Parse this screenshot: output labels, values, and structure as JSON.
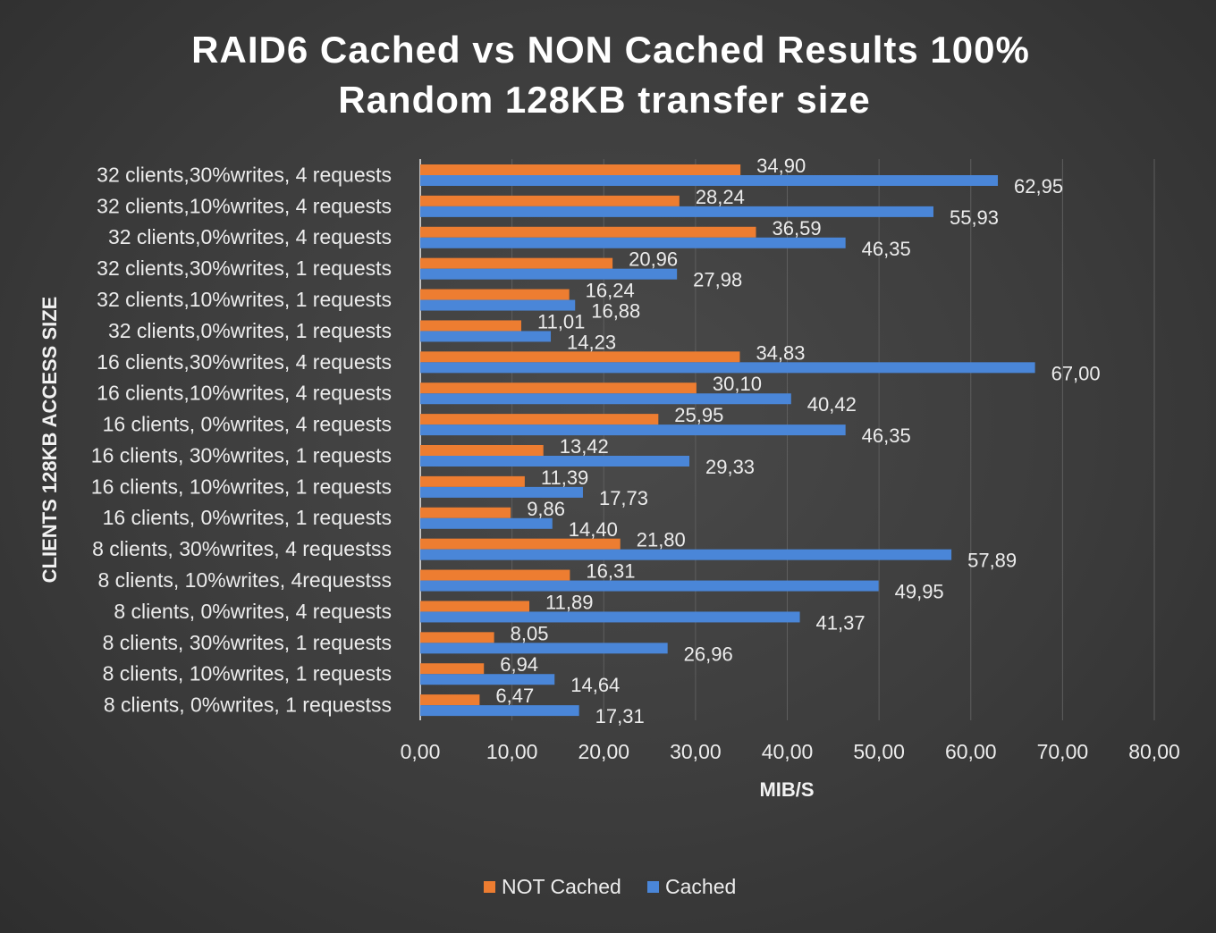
{
  "chart_data": {
    "type": "bar",
    "orientation": "horizontal",
    "title_lines": [
      "RAID6 Cached vs NON Cached Results 100%",
      "Random 128KB transfer size"
    ],
    "xlabel": "MIB/S",
    "ylabel": "CLIENTS 128KB ACCESS SIZE",
    "xlim": [
      0,
      80
    ],
    "xticks": [
      "0,00",
      "10,00",
      "20,00",
      "30,00",
      "40,00",
      "50,00",
      "60,00",
      "70,00",
      "80,00"
    ],
    "grid": true,
    "legend_position": "bottom",
    "categories": [
      "32 clients,30%writes, 4 requests",
      "32 clients,10%writes, 4 requests",
      "32 clients,0%writes, 4 requests",
      "32 clients,30%writes, 1 requests",
      "32 clients,10%writes, 1 requests",
      "32 clients,0%writes, 1 requests",
      "16 clients,30%writes, 4 requests",
      "16 clients,10%writes, 4 requests",
      "16 clients, 0%writes, 4 requests",
      "16 clients, 30%writes, 1 requests",
      "16 clients, 10%writes, 1 requests",
      "16 clients, 0%writes, 1 requests",
      "8 clients, 30%writes, 4 requestss",
      "8 clients, 10%writes, 4requestss",
      "8 clients, 0%writes, 4 requests",
      "8 clients, 30%writes, 1 requests",
      "8 clients, 10%writes, 1 requests",
      "8 clients, 0%writes, 1 requestss"
    ],
    "series": [
      {
        "name": "NOT Cached",
        "color": "#ed7d31",
        "values": [
          34.9,
          28.24,
          36.59,
          20.96,
          16.24,
          11.01,
          34.83,
          30.1,
          25.95,
          13.42,
          11.39,
          9.86,
          21.8,
          16.31,
          11.89,
          8.05,
          6.94,
          6.47
        ],
        "labels": [
          "34,90",
          "28,24",
          "36,59",
          "20,96",
          "16,24",
          "11,01",
          "34,83",
          "30,10",
          "25,95",
          "13,42",
          "11,39",
          "9,86",
          "21,80",
          "16,31",
          "11,89",
          "8,05",
          "6,94",
          "6,47"
        ]
      },
      {
        "name": "Cached",
        "color": "#4a86d8",
        "values": [
          62.95,
          55.93,
          46.35,
          27.98,
          16.88,
          14.23,
          67.0,
          40.42,
          46.35,
          29.33,
          17.73,
          14.4,
          57.89,
          49.95,
          41.37,
          26.96,
          14.64,
          17.31
        ],
        "labels": [
          "62,95",
          "55,93",
          "46,35",
          "27,98",
          "16,88",
          "14,23",
          "67,00",
          "40,42",
          "46,35",
          "29,33",
          "17,73",
          "14,40",
          "57,89",
          "49,95",
          "41,37",
          "26,96",
          "14,64",
          "17,31"
        ]
      }
    ]
  }
}
